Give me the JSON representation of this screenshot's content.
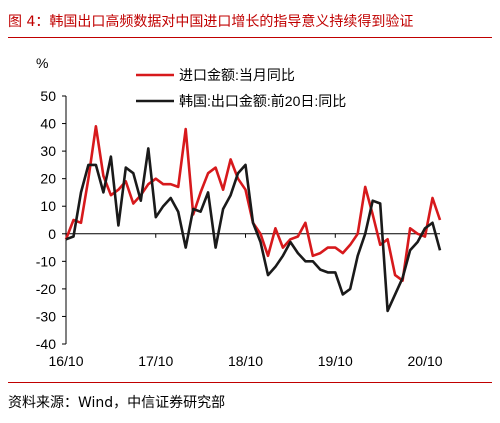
{
  "figure": {
    "title": "图 4：韩国出口高频数据对中国进口增长的指导意义持续得到验证",
    "source": "资料来源：Wind，中信证券研究部"
  },
  "chart_data": {
    "type": "line",
    "ylabel": "%",
    "ylim": [
      -40,
      50
    ],
    "yticks": [
      -40,
      -30,
      -20,
      -10,
      0,
      10,
      20,
      30,
      40,
      50
    ],
    "x_ticks": [
      {
        "label": "16/10",
        "index": 0
      },
      {
        "label": "17/10",
        "index": 12
      },
      {
        "label": "18/10",
        "index": 24
      },
      {
        "label": "19/10",
        "index": 36
      },
      {
        "label": "20/10",
        "index": 48
      }
    ],
    "legend_position": "top",
    "series": [
      {
        "name": "进口金额:当月同比",
        "color": "#d7191c",
        "values": [
          -2,
          5,
          4,
          20,
          39,
          21,
          14,
          16,
          19,
          11,
          14,
          18,
          20,
          18,
          18,
          17,
          38,
          7,
          15,
          22,
          24,
          16,
          27,
          20,
          16,
          4,
          0,
          -8,
          2,
          -5,
          -2,
          -1,
          4,
          -8,
          -7,
          -5,
          -5,
          -7,
          -4,
          0,
          17,
          7,
          -4,
          -2,
          -15,
          -17,
          2,
          0,
          -1,
          13,
          5
        ]
      },
      {
        "name": "韩国:出口金额:前20日:同比",
        "color": "#1a1a1a",
        "values": [
          -2,
          -1,
          15,
          25,
          25,
          15,
          28,
          3,
          24,
          22,
          12,
          31,
          6,
          10,
          13,
          8,
          -5,
          9,
          8,
          15,
          -5,
          9,
          14,
          22,
          25,
          4,
          -3,
          -15,
          -12,
          -8,
          -3,
          -7,
          -10,
          -10,
          -13,
          -14,
          -14,
          -22,
          -20,
          -8,
          0,
          12,
          11,
          -28,
          -22,
          -16,
          -6,
          -3,
          2,
          4,
          -6
        ]
      }
    ]
  }
}
